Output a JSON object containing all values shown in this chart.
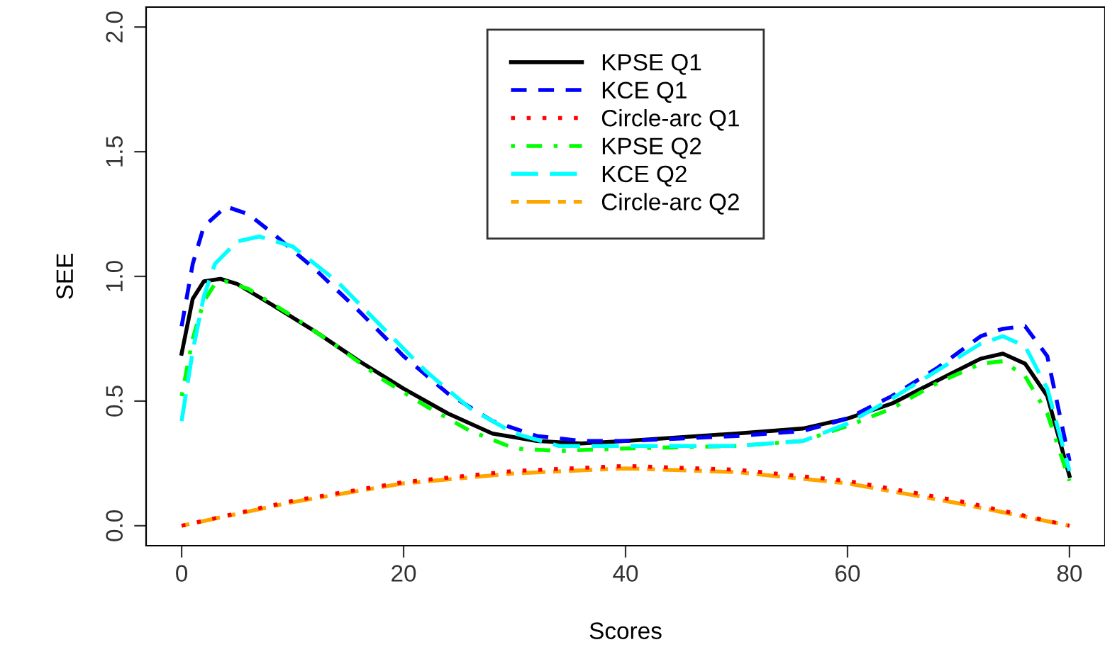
{
  "chart_data": {
    "type": "line",
    "xlabel": "Scores",
    "ylabel": "SEE",
    "xlim": [
      -3.2,
      83.2
    ],
    "ylim": [
      -0.08,
      2.08
    ],
    "xticks": [
      0,
      20,
      40,
      60,
      80
    ],
    "yticks": [
      {
        "value": 0,
        "label": "0.0"
      },
      {
        "value": 0.5,
        "label": "0.5"
      },
      {
        "value": 1,
        "label": "1.0"
      },
      {
        "value": 1.5,
        "label": "1.5"
      },
      {
        "value": 2,
        "label": "2.0"
      }
    ],
    "grid": false,
    "legend": "top",
    "marker": "none",
    "series": [
      {
        "name": "KPSE Q1",
        "color": "#000000",
        "line_style": "solid",
        "x": [
          0,
          1,
          2,
          3.5,
          5,
          8,
          12,
          16,
          20,
          24,
          28,
          32,
          36,
          40,
          50,
          56,
          60,
          64,
          68,
          72,
          74,
          76,
          78,
          80
        ],
        "values": [
          0.69,
          0.91,
          0.98,
          0.99,
          0.97,
          0.89,
          0.78,
          0.66,
          0.55,
          0.45,
          0.37,
          0.34,
          0.33,
          0.34,
          0.37,
          0.39,
          0.43,
          0.49,
          0.58,
          0.67,
          0.69,
          0.65,
          0.52,
          0.2
        ]
      },
      {
        "name": "KCE Q1",
        "color": "#0000ff",
        "line_style": "dashed",
        "x": [
          0,
          1,
          2,
          4,
          6,
          8,
          12,
          16,
          20,
          24,
          28,
          32,
          36,
          40,
          50,
          56,
          60,
          64,
          68,
          72,
          74,
          76,
          78,
          80
        ],
        "values": [
          0.8,
          1.05,
          1.2,
          1.28,
          1.25,
          1.18,
          1.03,
          0.86,
          0.68,
          0.53,
          0.42,
          0.36,
          0.34,
          0.34,
          0.36,
          0.38,
          0.43,
          0.52,
          0.63,
          0.76,
          0.79,
          0.8,
          0.68,
          0.26
        ]
      },
      {
        "name": "Circle-arc Q1",
        "color": "#ff0000",
        "line_style": "dotted",
        "x": [
          0,
          10,
          20,
          30,
          40,
          50,
          60,
          70,
          80
        ],
        "values": [
          0,
          0.1,
          0.175,
          0.22,
          0.24,
          0.225,
          0.18,
          0.1,
          0
        ]
      },
      {
        "name": "KPSE Q2",
        "color": "#00ff00",
        "line_style": "dashdot",
        "x": [
          0,
          1,
          2,
          3,
          4,
          6,
          10,
          14,
          18,
          22,
          26,
          30,
          34,
          40,
          50,
          56,
          60,
          64,
          68,
          72,
          74,
          76,
          78,
          80
        ],
        "values": [
          0.52,
          0.75,
          0.9,
          0.97,
          0.98,
          0.95,
          0.84,
          0.72,
          0.59,
          0.48,
          0.38,
          0.31,
          0.3,
          0.31,
          0.32,
          0.34,
          0.4,
          0.47,
          0.57,
          0.65,
          0.66,
          0.6,
          0.45,
          0.18
        ]
      },
      {
        "name": "KCE Q2",
        "color": "#00ffff",
        "line_style": "longdash",
        "x": [
          0,
          1,
          2,
          3,
          5,
          7,
          10,
          14,
          18,
          22,
          26,
          30,
          34,
          40,
          50,
          56,
          60,
          64,
          68,
          72,
          74,
          76,
          78,
          80
        ],
        "values": [
          0.42,
          0.7,
          0.92,
          1.05,
          1.14,
          1.16,
          1.12,
          0.98,
          0.8,
          0.62,
          0.47,
          0.37,
          0.32,
          0.32,
          0.32,
          0.34,
          0.41,
          0.51,
          0.62,
          0.73,
          0.76,
          0.72,
          0.55,
          0.22
        ]
      },
      {
        "name": "Circle-arc Q2",
        "color": "#ffa500",
        "line_style": "twodash",
        "x": [
          0,
          10,
          20,
          30,
          40,
          50,
          60,
          70,
          80
        ],
        "values": [
          0,
          0.095,
          0.17,
          0.21,
          0.23,
          0.215,
          0.17,
          0.09,
          0
        ]
      }
    ]
  }
}
